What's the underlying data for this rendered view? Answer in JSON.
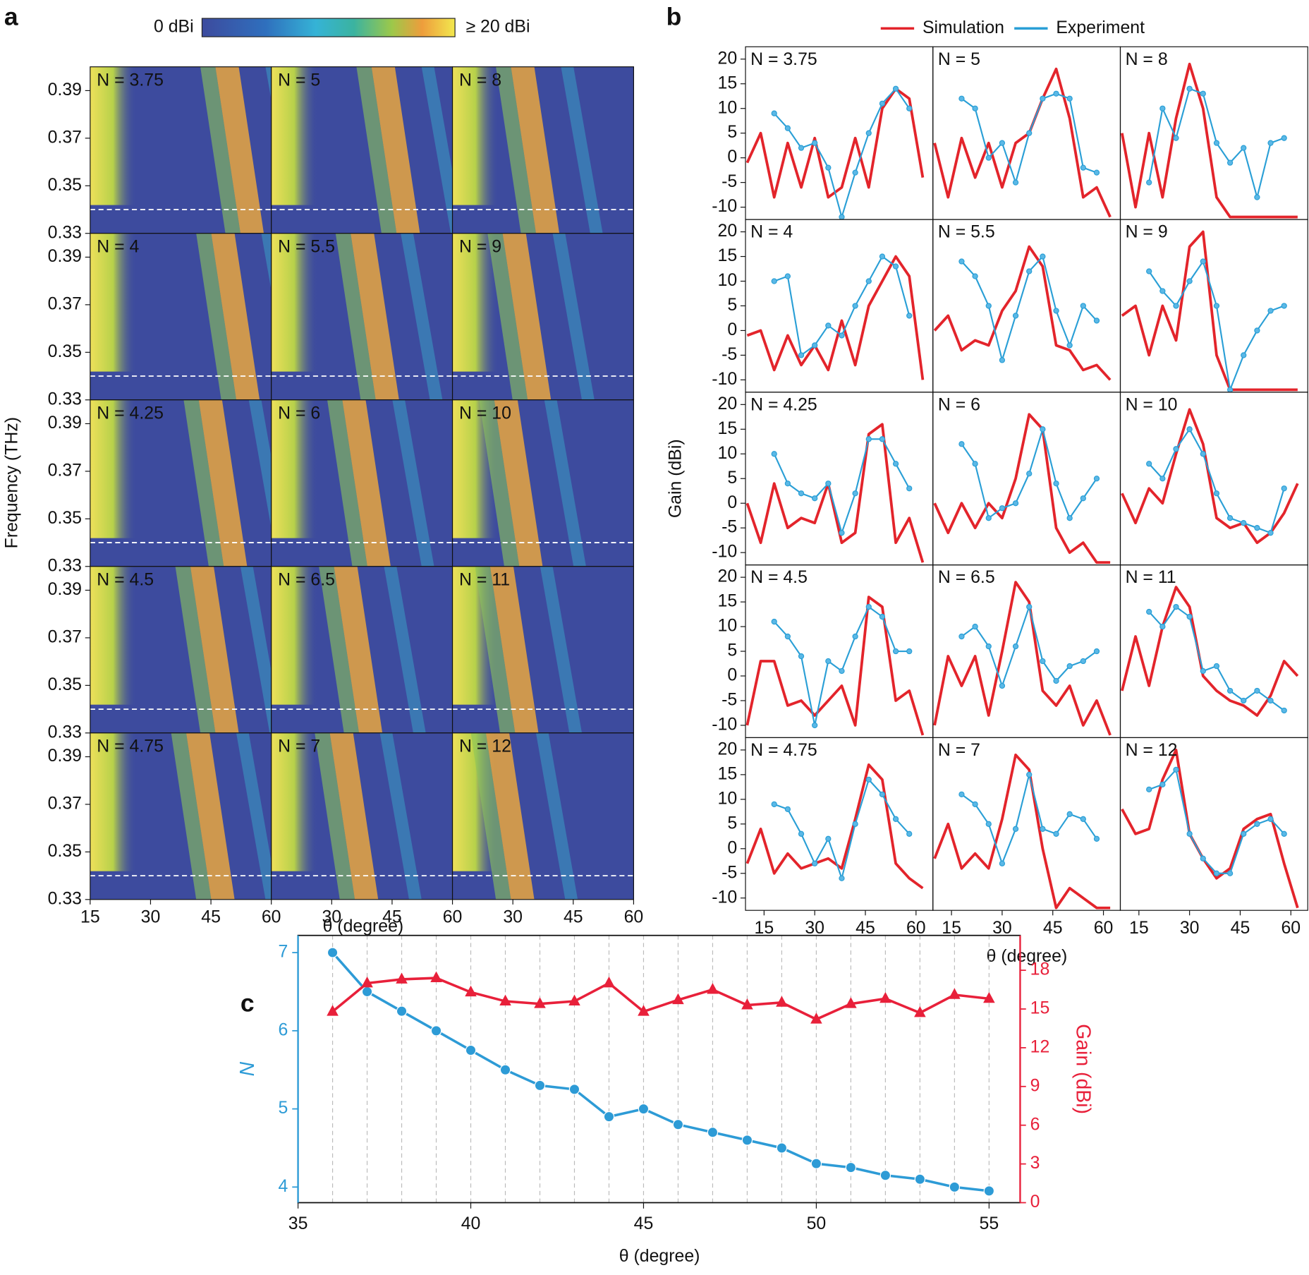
{
  "chart_data": [
    {
      "type": "heatmap",
      "panel_label": "a",
      "colorbar_min_label": "0 dBi",
      "colorbar_max_label": "≥ 20 dBi",
      "y_label": "Frequency (THz)",
      "x_label": "θ (degree)",
      "ylim": [
        0.33,
        0.4
      ],
      "yticks": [
        0.33,
        0.35,
        0.37,
        0.39
      ],
      "xlim": [
        15,
        60
      ],
      "xticks_by_column": [
        [
          15,
          30,
          45,
          60
        ],
        [
          30,
          45,
          60
        ],
        [
          30,
          45,
          60
        ]
      ],
      "dashed_line": 0.34,
      "panels": [
        "N = 3.75",
        "N = 5",
        "N = 8",
        "N = 4",
        "N = 5.5",
        "N = 9",
        "N = 4.25",
        "N = 6",
        "N = 10",
        "N = 4.5",
        "N = 6.5",
        "N = 11",
        "N = 4.75",
        "N = 7",
        "N = 12"
      ]
    },
    {
      "type": "line",
      "panel_label": "b",
      "y_label": "Gain (dBi)",
      "x_label": "θ (degree)",
      "ylim": [
        -12.5,
        22.5
      ],
      "yticks": [
        -10,
        -5,
        0,
        5,
        10,
        15,
        20
      ],
      "xlim": [
        9.5,
        65
      ],
      "xticks": [
        15,
        30,
        45,
        60
      ],
      "series": [
        {
          "name": "Simulation",
          "color": "#e3242b"
        },
        {
          "name": "Experiment",
          "color": "#2a9fd6"
        }
      ],
      "x": [
        10,
        14,
        18,
        22,
        26,
        30,
        34,
        38,
        42,
        46,
        50,
        54,
        58,
        62
      ],
      "panels": [
        {
          "label": "N = 3.75",
          "values": [
            [
              -1,
              5,
              -8,
              3,
              -6,
              4,
              -8,
              -6,
              4,
              -6,
              10,
              14,
              12,
              -4
            ],
            [
              null,
              null,
              9,
              6,
              2,
              3,
              -2,
              -12,
              -3,
              5,
              11,
              14,
              10,
              null
            ]
          ]
        },
        {
          "label": "N = 5",
          "values": [
            [
              3,
              -8,
              4,
              -4,
              3,
              -6,
              3,
              5,
              12,
              18,
              8,
              -8,
              -6,
              -12
            ],
            [
              null,
              null,
              12,
              10,
              0,
              3,
              -5,
              5,
              12,
              13,
              12,
              -2,
              -3,
              null
            ]
          ]
        },
        {
          "label": "N = 8",
          "values": [
            [
              5,
              -10,
              5,
              -8,
              8,
              19,
              10,
              -8,
              -12,
              -12,
              -12,
              -12,
              -12,
              -12
            ],
            [
              null,
              null,
              -5,
              10,
              4,
              14,
              13,
              3,
              -1,
              2,
              -8,
              3,
              4,
              null
            ]
          ]
        },
        {
          "label": "N = 4",
          "values": [
            [
              -1,
              0,
              -8,
              -1,
              -7,
              -3,
              -8,
              2,
              -7,
              5,
              10,
              15,
              11,
              -10
            ],
            [
              null,
              null,
              10,
              11,
              -5,
              -3,
              1,
              -1,
              5,
              10,
              15,
              13,
              3,
              null
            ]
          ]
        },
        {
          "label": "N = 5.5",
          "values": [
            [
              0,
              3,
              -4,
              -2,
              -3,
              4,
              8,
              17,
              13,
              -3,
              -4,
              -8,
              -7,
              -10
            ],
            [
              null,
              null,
              14,
              11,
              5,
              -6,
              3,
              12,
              15,
              4,
              -3,
              5,
              2,
              null
            ]
          ]
        },
        {
          "label": "N = 9",
          "values": [
            [
              3,
              5,
              -5,
              5,
              -2,
              17,
              20,
              -5,
              -12,
              -12,
              -12,
              -12,
              -12,
              -12
            ],
            [
              null,
              null,
              12,
              8,
              5,
              10,
              14,
              5,
              -12,
              -5,
              0,
              4,
              5,
              null
            ]
          ]
        },
        {
          "label": "N = 4.25",
          "values": [
            [
              0,
              -8,
              4,
              -5,
              -3,
              -4,
              4,
              -8,
              -6,
              14,
              16,
              -8,
              -3,
              -12
            ],
            [
              null,
              null,
              10,
              4,
              2,
              1,
              4,
              -6,
              2,
              13,
              13,
              8,
              3,
              null
            ]
          ]
        },
        {
          "label": "N = 6",
          "values": [
            [
              0,
              -6,
              0,
              -5,
              0,
              -3,
              5,
              18,
              15,
              -5,
              -10,
              -8,
              -12,
              -12
            ],
            [
              null,
              null,
              12,
              8,
              -3,
              -1,
              0,
              6,
              15,
              4,
              -3,
              1,
              5,
              null
            ]
          ]
        },
        {
          "label": "N = 10",
          "values": [
            [
              2,
              -4,
              3,
              0,
              10,
              19,
              12,
              -3,
              -5,
              -4,
              -8,
              -6,
              -2,
              4
            ],
            [
              null,
              null,
              8,
              5,
              11,
              15,
              10,
              2,
              -3,
              -4,
              -5,
              -6,
              3,
              null
            ]
          ]
        },
        {
          "label": "N = 4.5",
          "values": [
            [
              -10,
              3,
              3,
              -6,
              -5,
              -8,
              -5,
              -2,
              -10,
              16,
              14,
              -5,
              -3,
              -12
            ],
            [
              null,
              null,
              11,
              8,
              4,
              -10,
              3,
              1,
              8,
              14,
              12,
              5,
              5,
              null
            ]
          ]
        },
        {
          "label": "N = 6.5",
          "values": [
            [
              -10,
              4,
              -2,
              4,
              -8,
              5,
              19,
              15,
              -3,
              -6,
              -2,
              -10,
              -5,
              -12
            ],
            [
              null,
              null,
              8,
              10,
              6,
              -2,
              6,
              14,
              3,
              -1,
              2,
              3,
              5,
              null
            ]
          ]
        },
        {
          "label": "N = 11",
          "values": [
            [
              -3,
              8,
              -2,
              10,
              18,
              14,
              0,
              -3,
              -5,
              -6,
              -8,
              -4,
              3,
              0
            ],
            [
              null,
              null,
              13,
              10,
              14,
              12,
              1,
              2,
              -3,
              -5,
              -3,
              -5,
              -7,
              null
            ]
          ]
        },
        {
          "label": "N = 4.75",
          "values": [
            [
              -3,
              4,
              -5,
              -1,
              -4,
              -3,
              -2,
              -4,
              6,
              17,
              14,
              -3,
              -6,
              -8
            ],
            [
              null,
              null,
              9,
              8,
              3,
              -3,
              2,
              -6,
              5,
              14,
              11,
              6,
              3,
              null
            ]
          ]
        },
        {
          "label": "N = 7",
          "values": [
            [
              -2,
              5,
              -4,
              -1,
              -4,
              6,
              19,
              16,
              0,
              -12,
              -8,
              -10,
              -12,
              -12
            ],
            [
              null,
              null,
              11,
              9,
              5,
              -3,
              4,
              15,
              4,
              3,
              7,
              6,
              2,
              null
            ]
          ]
        },
        {
          "label": "N = 12",
          "values": [
            [
              8,
              3,
              4,
              14,
              20,
              3,
              -2,
              -6,
              -4,
              4,
              6,
              7,
              -3,
              -12
            ],
            [
              null,
              null,
              12,
              13,
              16,
              3,
              -2,
              -5,
              -5,
              3,
              5,
              6,
              3,
              null
            ]
          ]
        }
      ]
    },
    {
      "type": "line",
      "panel_label": "c",
      "x_label": "θ (degree)",
      "y_label": "N",
      "y2_label": "Gain (dBi)",
      "x": [
        36,
        37,
        38,
        39,
        40,
        41,
        42,
        43,
        44,
        45,
        46,
        47,
        48,
        49,
        50,
        51,
        52,
        53,
        54,
        55
      ],
      "xlim": [
        35,
        55.9
      ],
      "xticks": [
        35,
        40,
        45,
        50,
        55
      ],
      "xgrid": true,
      "ylim": [
        3.8,
        7.22
      ],
      "yticks": [
        4,
        5,
        6,
        7
      ],
      "y2lim": [
        0,
        20.7
      ],
      "y2ticks": [
        0,
        3,
        6,
        9,
        12,
        15,
        18
      ],
      "series": [
        {
          "name": "N",
          "color": "#2d9bd6",
          "marker": "circle",
          "values": [
            7,
            6.5,
            6.25,
            6,
            5.75,
            5.5,
            5.3,
            5.25,
            4.9,
            5,
            4.8,
            4.7,
            4.6,
            4.5,
            4.3,
            4.25,
            4.15,
            4.1,
            4,
            3.95
          ]
        },
        {
          "name": "Gain (dBi)",
          "color": "#e8203a",
          "marker": "triangle",
          "axis": "y2",
          "values": [
            14.8,
            17,
            17.3,
            17.4,
            16.3,
            15.6,
            15.4,
            15.6,
            17,
            14.8,
            15.7,
            16.5,
            15.3,
            15.5,
            14.2,
            15.4,
            15.8,
            14.7,
            16.1,
            15.8
          ]
        }
      ]
    }
  ]
}
